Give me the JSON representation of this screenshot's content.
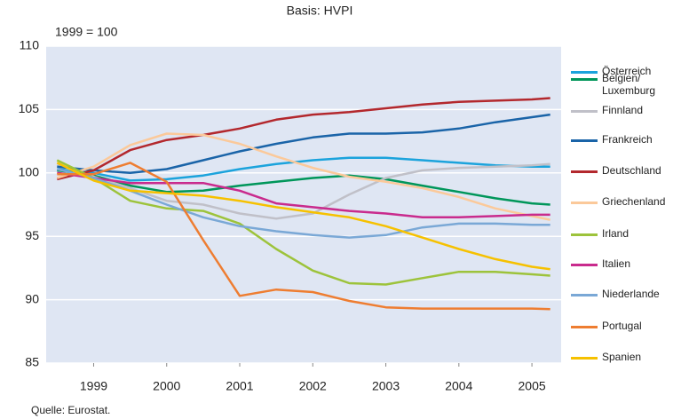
{
  "chart_data": {
    "type": "line",
    "title": "Basis: HVPI",
    "subtitle": "1999 = 100",
    "source": "Quelle: Eurostat.",
    "x": [
      1999.0,
      1999.5,
      2000.0,
      2000.5,
      2001.0,
      2001.5,
      2002.0,
      2002.5,
      2003.0,
      2003.5,
      2004.0,
      2004.5,
      2005.0,
      2005.5,
      2005.75
    ],
    "xlim": [
      1998.85,
      2005.9
    ],
    "xticks": [
      {
        "value": 1999.5,
        "label": "1999"
      },
      {
        "value": 2000.5,
        "label": "2000"
      },
      {
        "value": 2001.5,
        "label": "2001"
      },
      {
        "value": 2002.5,
        "label": "2002"
      },
      {
        "value": 2003.5,
        "label": "2003"
      },
      {
        "value": 2004.5,
        "label": "2004"
      },
      {
        "value": 2005.5,
        "label": "2005"
      }
    ],
    "ylim": [
      85,
      110
    ],
    "yticks": [
      85,
      90,
      95,
      100,
      105,
      110
    ],
    "grid": true,
    "legend": "right",
    "series": [
      {
        "name": "Österreich",
        "color": "#1ba3dc",
        "values": [
          100.3,
          100.0,
          99.4,
          99.5,
          99.8,
          100.3,
          100.7,
          101.0,
          101.2,
          101.2,
          101.0,
          100.8,
          100.6,
          100.5,
          100.5
        ]
      },
      {
        "name": "Belgien/ Luxemburg",
        "color": "#00965a",
        "values": [
          100.2,
          99.8,
          99.0,
          98.5,
          98.6,
          99.0,
          99.3,
          99.6,
          99.8,
          99.5,
          99.0,
          98.5,
          98.0,
          97.6,
          97.5
        ]
      },
      {
        "name": "Finnland",
        "color": "#c0c0c8",
        "values": [
          100.6,
          99.7,
          98.8,
          97.8,
          97.5,
          96.8,
          96.4,
          96.8,
          98.3,
          99.6,
          100.2,
          100.4,
          100.5,
          100.6,
          100.7
        ]
      },
      {
        "name": "Frankreich",
        "color": "#1a64a8",
        "values": [
          100.5,
          100.2,
          100.0,
          100.3,
          101.0,
          101.7,
          102.3,
          102.8,
          103.1,
          103.1,
          103.2,
          103.5,
          104.0,
          104.4,
          104.6
        ]
      },
      {
        "name": "Deutschland",
        "color": "#b3282d",
        "values": [
          99.5,
          100.2,
          101.8,
          102.6,
          103.0,
          103.5,
          104.2,
          104.6,
          104.8,
          105.1,
          105.4,
          105.6,
          105.7,
          105.8,
          105.9
        ]
      },
      {
        "name": "Griechenland",
        "color": "#fbc99a",
        "values": [
          99.6,
          100.5,
          102.2,
          103.1,
          103.0,
          102.3,
          101.3,
          100.4,
          99.7,
          99.3,
          98.8,
          98.1,
          97.2,
          96.6,
          96.3
        ]
      },
      {
        "name": "Irland",
        "color": "#9dc33b",
        "values": [
          101.0,
          99.6,
          97.8,
          97.2,
          97.0,
          96.0,
          94.0,
          92.3,
          91.3,
          91.2,
          91.7,
          92.2,
          92.2,
          92.0,
          91.9
        ]
      },
      {
        "name": "Italien",
        "color": "#c92b8d",
        "values": [
          100.0,
          99.6,
          99.2,
          99.2,
          99.2,
          98.6,
          97.6,
          97.3,
          97.0,
          96.8,
          96.5,
          96.5,
          96.6,
          96.7,
          96.7
        ]
      },
      {
        "name": "Niederlande",
        "color": "#7aa8d6",
        "values": [
          100.3,
          99.6,
          98.6,
          97.5,
          96.5,
          95.8,
          95.4,
          95.1,
          94.9,
          95.1,
          95.7,
          96.0,
          96.0,
          95.9,
          95.9
        ]
      },
      {
        "name": "Portugal",
        "color": "#ee7d31",
        "values": [
          99.9,
          99.9,
          100.8,
          99.3,
          94.7,
          90.3,
          90.8,
          90.6,
          89.9,
          89.4,
          89.3,
          89.3,
          89.3,
          89.3,
          89.25
        ]
      },
      {
        "name": "Spanien",
        "color": "#f6c100",
        "values": [
          100.8,
          99.4,
          98.6,
          98.4,
          98.2,
          97.8,
          97.3,
          96.9,
          96.5,
          95.8,
          94.9,
          94.0,
          93.2,
          92.6,
          92.4
        ]
      }
    ]
  }
}
